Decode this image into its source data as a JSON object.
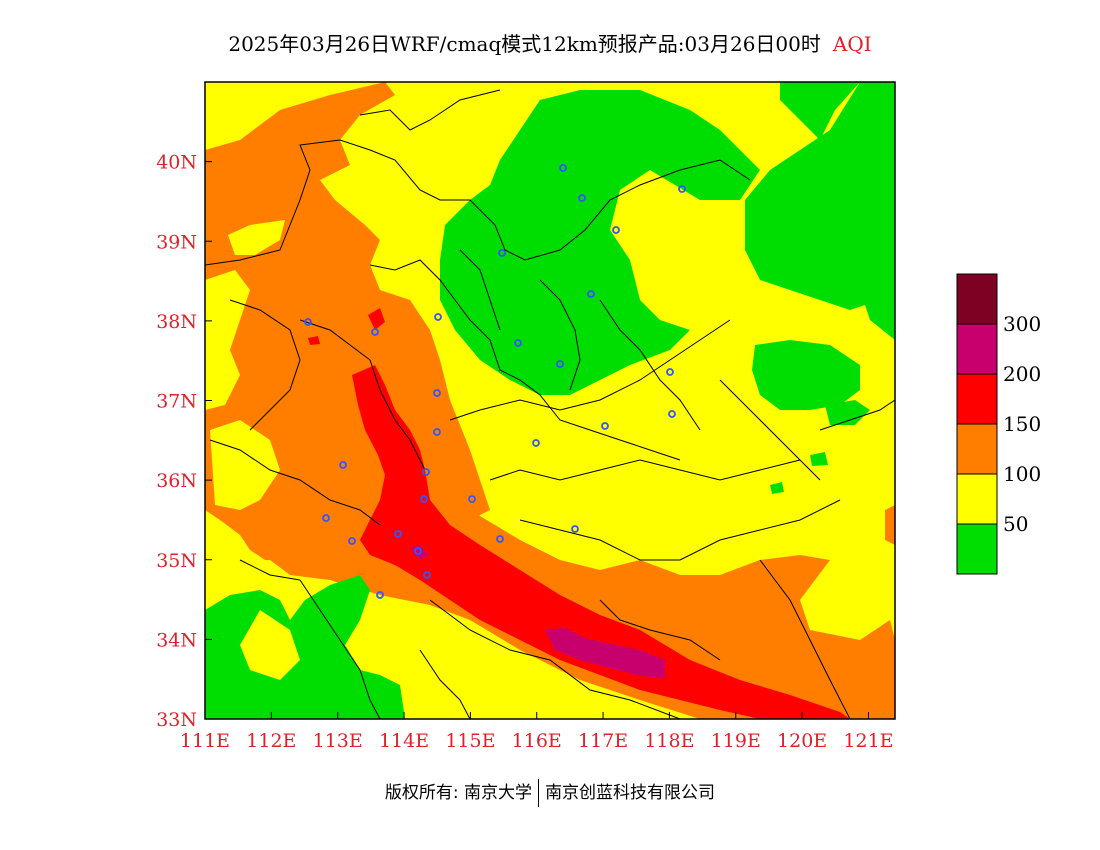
{
  "title": {
    "main": "2025年03月26日WRF/cmaq模式12km预报产品:03月26日00时",
    "variable": "AQI"
  },
  "map": {
    "lon_range": [
      111,
      121.4
    ],
    "lat_range": [
      33,
      41
    ],
    "lon_ticks": [
      {
        "value": 111,
        "label": "111E"
      },
      {
        "value": 112,
        "label": "112E"
      },
      {
        "value": 113,
        "label": "113E"
      },
      {
        "value": 114,
        "label": "114E"
      },
      {
        "value": 115,
        "label": "115E"
      },
      {
        "value": 116,
        "label": "116E"
      },
      {
        "value": 117,
        "label": "117E"
      },
      {
        "value": 118,
        "label": "118E"
      },
      {
        "value": 119,
        "label": "119E"
      },
      {
        "value": 120,
        "label": "120E"
      },
      {
        "value": 121,
        "label": "121E"
      }
    ],
    "lat_ticks": [
      {
        "value": 33,
        "label": "33N"
      },
      {
        "value": 34,
        "label": "34N"
      },
      {
        "value": 35,
        "label": "35N"
      },
      {
        "value": 36,
        "label": "36N"
      },
      {
        "value": 37,
        "label": "37N"
      },
      {
        "value": 38,
        "label": "38N"
      },
      {
        "value": 39,
        "label": "39N"
      },
      {
        "value": 40,
        "label": "40N"
      }
    ],
    "colors": {
      "0-50": "#00dd00",
      "50-100": "#ffff00",
      "100-150": "#ff7e00",
      "150-200": "#ff0000",
      "200-300": "#c8006e",
      "300+": "#7e0023",
      "boundary": "#000000",
      "station": "#3355ff"
    }
  },
  "legend": {
    "levels": [
      {
        "label": "",
        "color": "#7e0023"
      },
      {
        "label": "300",
        "color": "#c8006e"
      },
      {
        "label": "200",
        "color": "#ff0000"
      },
      {
        "label": "150",
        "color": "#ff7e00"
      },
      {
        "label": "100",
        "color": "#ffff00"
      },
      {
        "label": "50",
        "color": "#00dd00"
      }
    ]
  },
  "footer": {
    "copyright": "版权所有: 南京大学",
    "company": "南京创蓝科技有限公司"
  }
}
